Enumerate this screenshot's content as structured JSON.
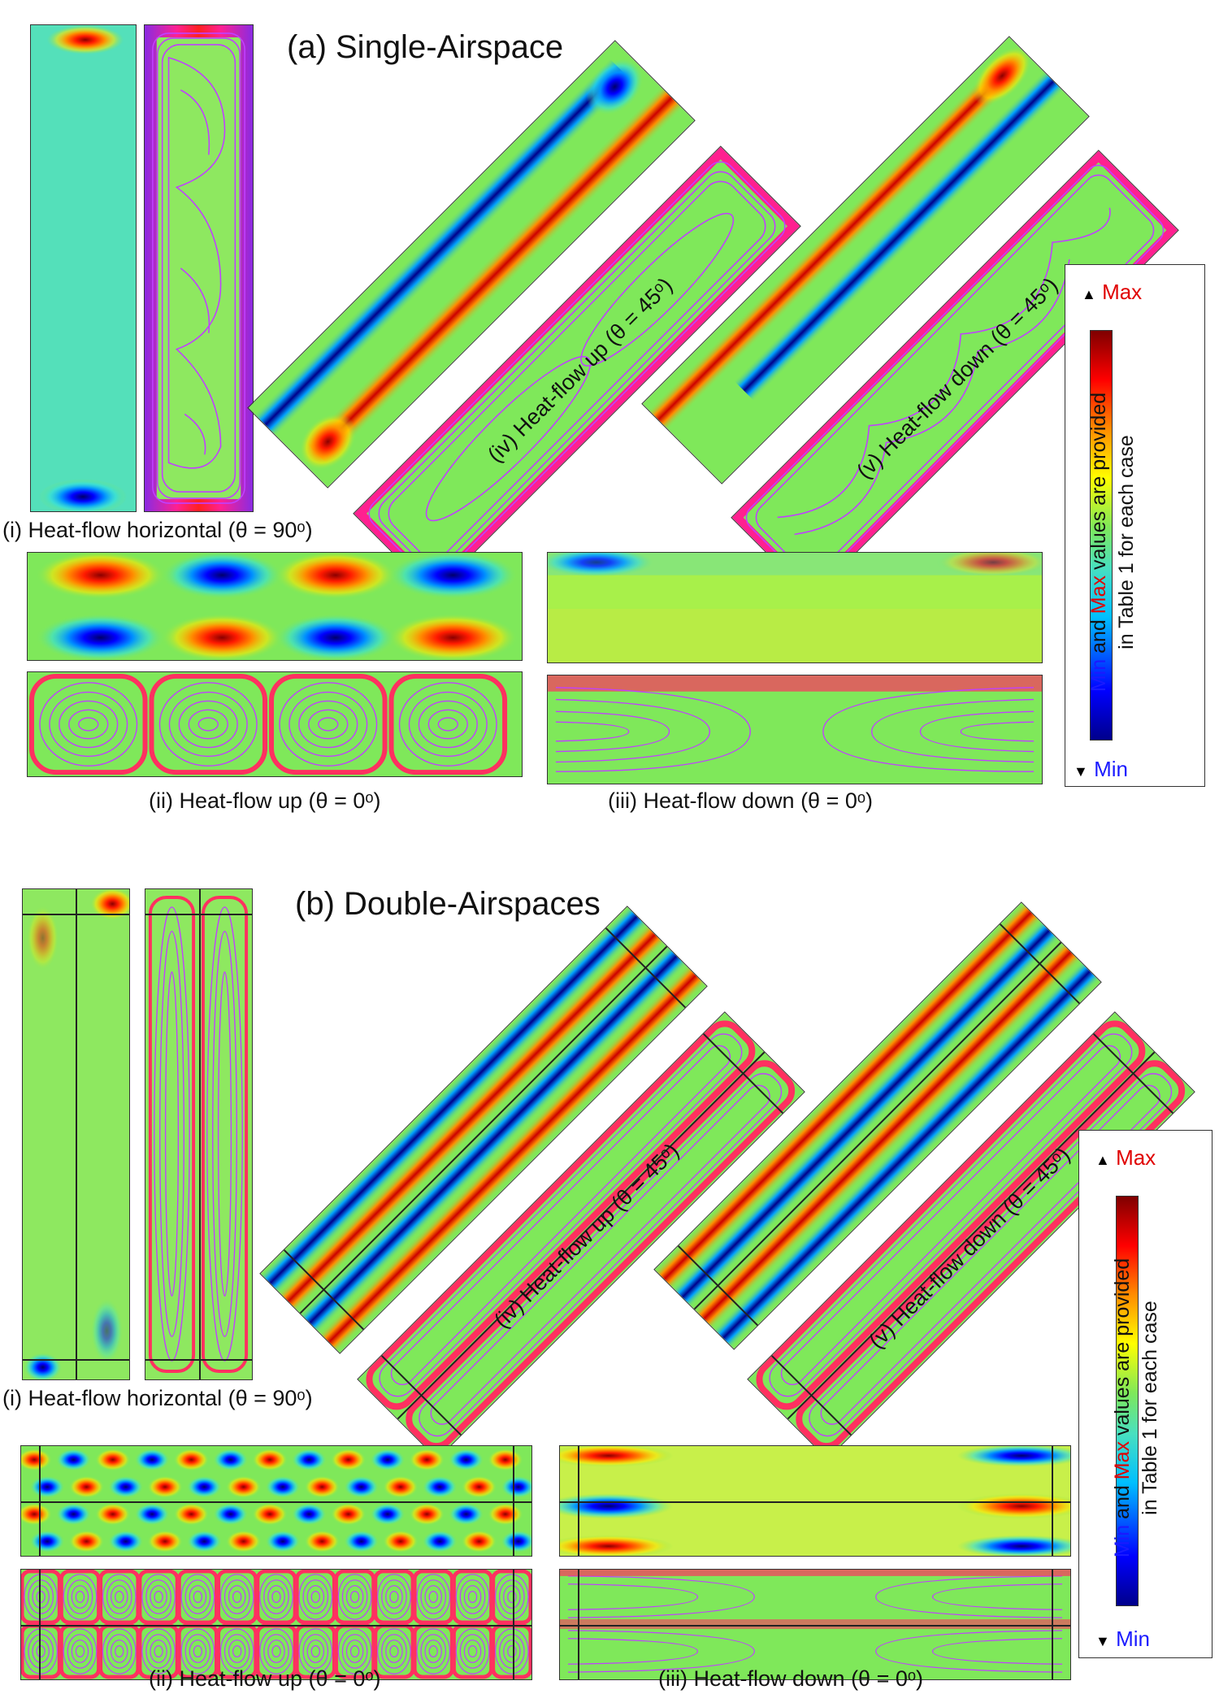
{
  "colors": {
    "min": "#1a1aff",
    "max": "#e00000",
    "field": "#7fe85a",
    "stream": "#c040ff"
  },
  "section_a": {
    "title": "(a) Single-Airspace",
    "captions": {
      "i": "(i) Heat-flow horizontal (θ = 90ᵒ)",
      "ii": "(ii) Heat-flow up (θ = 0ᵒ)",
      "iii": "(iii) Heat-flow down (θ = 0ᵒ)",
      "iv": "(iv) Heat-flow up (θ = 45ᵒ)",
      "v": "(v) Heat-flow down (θ = 45ᵒ)"
    }
  },
  "section_b": {
    "title": "(b) Double-Airspaces",
    "captions": {
      "i": "(i) Heat-flow horizontal (θ = 90ᵒ)",
      "ii": "(ii) Heat-flow up (θ = 0ᵒ)",
      "iii": "(iii) Heat-flow down (θ = 0ᵒ)",
      "iv": "(iv) Heat-flow up (θ = 45ᵒ)",
      "v": "(v) Heat-flow down (θ = 45ᵒ)"
    }
  },
  "legend": {
    "max_label": "Max",
    "min_label": "Min",
    "up_arrow": "▲",
    "down_arrow": "▼",
    "text_min": "Min",
    "text_and": " and ",
    "text_max": "Max",
    "text_rest1": " values are provided",
    "text_rest2": "in Table 1 for each case"
  }
}
